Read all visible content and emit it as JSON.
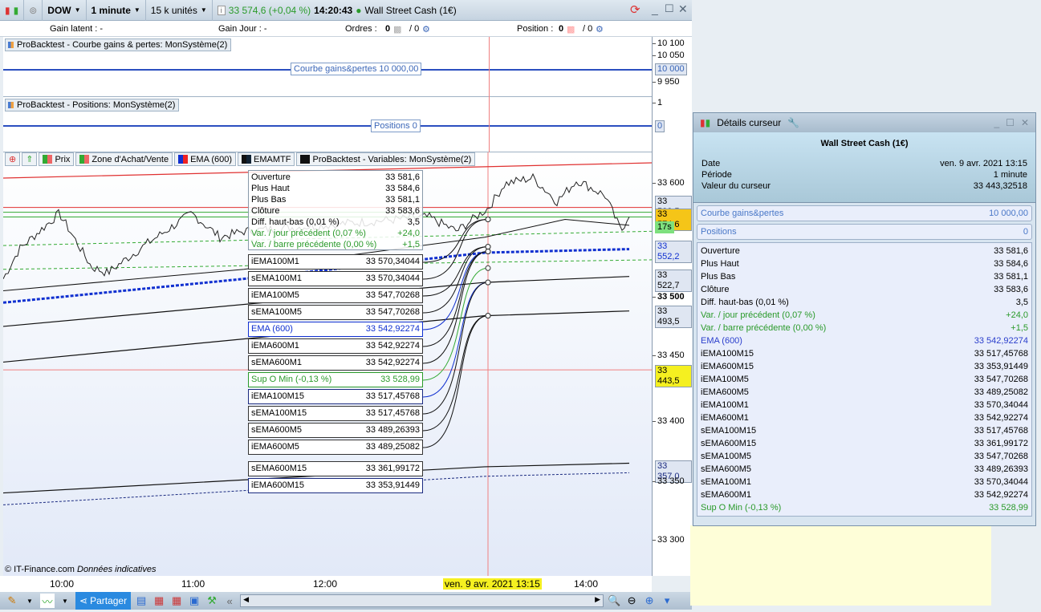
{
  "topbar": {
    "instrument": "DOW",
    "period": "1 minute",
    "units": "15 k unités",
    "price": "33 574,6 (+0,04 %)",
    "time": "14:20:43",
    "market": "Wall Street Cash (1€)"
  },
  "infobar": {
    "gain_latent": "Gain latent : -",
    "gain_jour": "Gain Jour : -",
    "ordres_label": "Ordres :",
    "ordres_val": "0",
    "ordres_total": "/ 0",
    "position_label": "Position :",
    "position_val": "0",
    "position_total": "/ 0"
  },
  "panel1": {
    "title": "ProBacktest - Courbe gains & pertes: MonSystème(2)",
    "tag": "Courbe gains&pertes   10 000,00",
    "axis": [
      "10 100",
      "10 050",
      "9 950"
    ],
    "axis_label": "10 000"
  },
  "panel2": {
    "title": "ProBacktest - Positions: MonSystème(2)",
    "tag": "Positions   0",
    "axis": [
      "1"
    ],
    "axis_label": "0"
  },
  "legend": [
    {
      "label": "Prix"
    },
    {
      "label": "Zone d'Achat/Vente"
    },
    {
      "label": "EMA (600)"
    },
    {
      "label": "EMAMTF"
    },
    {
      "label": "ProBacktest - Variables: MonSystème(2)"
    }
  ],
  "tooltip": [
    {
      "k": "Ouverture",
      "v": "33 581,6"
    },
    {
      "k": "Plus Haut",
      "v": "33 584,6"
    },
    {
      "k": "Plus Bas",
      "v": "33 581,1"
    },
    {
      "k": "Clôture",
      "v": "33 583,6"
    },
    {
      "k": "Diff. haut-bas (0,01 %)",
      "v": "3,5"
    },
    {
      "k": "Var. / jour précédent (0,07 %)",
      "v": "+24,0"
    },
    {
      "k": "Var. / barre précédente (0,00 %)",
      "v": "+1,5"
    }
  ],
  "labels": [
    {
      "k": "iEMA100M1",
      "v": "33 570,34044"
    },
    {
      "k": "sEMA100M1",
      "v": "33 570,34044"
    },
    {
      "k": "iEMA100M5",
      "v": "33 547,70268"
    },
    {
      "k": "sEMA100M5",
      "v": "33 547,70268"
    },
    {
      "k": "EMA (600)",
      "v": "33 542,92274"
    },
    {
      "k": "iEMA600M1",
      "v": "33 542,92274"
    },
    {
      "k": "sEMA600M1",
      "v": "33 542,92274"
    },
    {
      "k": "Sup O Min (-0,13 %)",
      "v": "33 528,99"
    },
    {
      "k": "iEMA100M15",
      "v": "33 517,45768"
    },
    {
      "k": "sEMA100M15",
      "v": "33 517,45768"
    },
    {
      "k": "sEMA600M5",
      "v": "33 489,26393"
    },
    {
      "k": "iEMA600M5",
      "v": "33 489,25082"
    },
    {
      "k": "sEMA600M15",
      "v": "33 361,99172"
    },
    {
      "k": "iEMA600M15",
      "v": "33 353,91449"
    }
  ],
  "yaxis": {
    "ticks": [
      "33 600",
      "33 500",
      "33 450",
      "33 400",
      "33 350",
      "33 300"
    ],
    "labels": [
      "33 583,5",
      "33 574,6",
      "17s",
      "33 552,2",
      "33 522,7",
      "33 493,5",
      "33 443,5",
      "33 357,0"
    ]
  },
  "xaxis": {
    "ticks": [
      "10:00",
      "11:00",
      "12:00",
      "14:00"
    ],
    "cursor": "ven. 9 avr. 2021 13:15"
  },
  "copyright": "© IT-Finance.com",
  "disclaimer": "Données indicatives",
  "bottombar": {
    "share": "Partager"
  },
  "rpanel": {
    "title": "Détails curseur",
    "instrument": "Wall Street Cash (1€)",
    "head": [
      {
        "k": "Date",
        "v": "ven. 9 avr. 2021 13:15"
      },
      {
        "k": "Période",
        "v": "1 minute"
      },
      {
        "k": "Valeur du curseur",
        "v": "33 443,32518"
      }
    ],
    "boxes": [
      {
        "k": "Courbe gains&pertes",
        "v": "10 000,00"
      },
      {
        "k": "Positions",
        "v": "0"
      }
    ],
    "rows": [
      {
        "k": "Ouverture",
        "v": "33 581,6",
        "c": ""
      },
      {
        "k": "Plus Haut",
        "v": "33 584,6",
        "c": ""
      },
      {
        "k": "Plus Bas",
        "v": "33 581,1",
        "c": ""
      },
      {
        "k": "Clôture",
        "v": "33 583,6",
        "c": ""
      },
      {
        "k": "Diff. haut-bas (0,01 %)",
        "v": "3,5",
        "c": ""
      },
      {
        "k": "Var. / jour précédent (0,07 %)",
        "v": "+24,0",
        "c": "green"
      },
      {
        "k": "Var. / barre précédente (0,00 %)",
        "v": "+1,5",
        "c": "green"
      },
      {
        "k": "EMA (600)",
        "v": "33 542,92274",
        "c": "blue"
      },
      {
        "k": "iEMA100M15",
        "v": "33 517,45768",
        "c": ""
      },
      {
        "k": "iEMA600M15",
        "v": "33 353,91449",
        "c": ""
      },
      {
        "k": "iEMA100M5",
        "v": "33 547,70268",
        "c": ""
      },
      {
        "k": "iEMA600M5",
        "v": "33 489,25082",
        "c": ""
      },
      {
        "k": "iEMA100M1",
        "v": "33 570,34044",
        "c": ""
      },
      {
        "k": "iEMA600M1",
        "v": "33 542,92274",
        "c": ""
      },
      {
        "k": "sEMA100M15",
        "v": "33 517,45768",
        "c": ""
      },
      {
        "k": "sEMA600M15",
        "v": "33 361,99172",
        "c": ""
      },
      {
        "k": "sEMA100M5",
        "v": "33 547,70268",
        "c": ""
      },
      {
        "k": "sEMA600M5",
        "v": "33 489,26393",
        "c": ""
      },
      {
        "k": "sEMA100M1",
        "v": "33 570,34044",
        "c": ""
      },
      {
        "k": "sEMA600M1",
        "v": "33 542,92274",
        "c": ""
      },
      {
        "k": "Sup O Min (-0,13 %)",
        "v": "33 528,99",
        "c": "green"
      }
    ]
  }
}
